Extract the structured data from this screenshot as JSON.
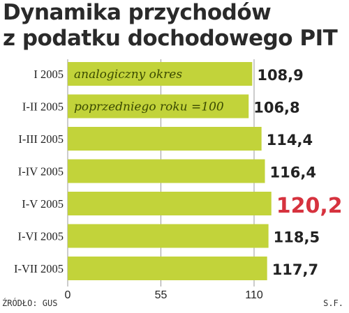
{
  "title_lines": [
    "Dynamika przychodów",
    "z podatku dochodowego PIT"
  ],
  "source": "ŹRÓDŁO: GUS",
  "author": "S.F.",
  "colors": {
    "bar": "#c2d33a",
    "highlight_label": "#d6323e",
    "value_label": "#222222",
    "bar_text": "#3a4a00"
  },
  "chart_data": {
    "type": "bar",
    "orientation": "horizontal",
    "title": "Dynamika przychodów z podatku dochodowego PIT",
    "categories": [
      "I 2005",
      "I-II 2005",
      "I-III 2005",
      "I-IV 2005",
      "I-V 2005",
      "I-VI 2005",
      "I-VII 2005"
    ],
    "values": [
      108.9,
      106.8,
      114.4,
      116.4,
      120.2,
      118.5,
      117.7
    ],
    "value_labels": [
      "108,9",
      "106,8",
      "114,4",
      "116,4",
      "120,2",
      "118,5",
      "117,7"
    ],
    "highlight_index": 4,
    "xlim": [
      0,
      110
    ],
    "xticks": [
      0,
      55,
      110
    ],
    "xtick_labels": [
      "0",
      "55",
      "110"
    ],
    "annotation_lines": [
      "analogiczny okres",
      "poprzedniego roku =100"
    ],
    "xlabel": "",
    "ylabel": "",
    "grid": true,
    "legend": "none"
  }
}
